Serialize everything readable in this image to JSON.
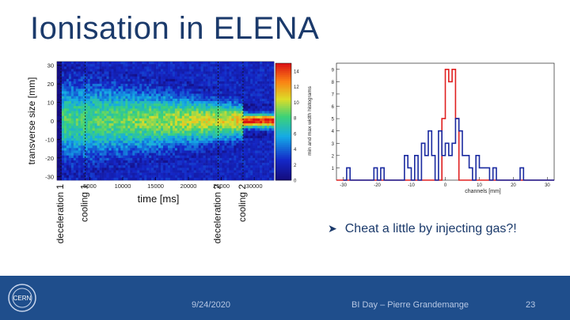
{
  "slide": {
    "title": "Ionisation in ELENA",
    "bullet": "Cheat a little by injecting gas?!",
    "bullet_icon": "arrow-bullet-icon"
  },
  "footer": {
    "date": "9/24/2020",
    "presenter": "BI Day – Pierre Grandemange",
    "page": "23",
    "logo_text": "CERN",
    "logo_icon": "cern-logo-icon",
    "background": "#1f4e8c"
  },
  "chart_data": [
    {
      "type": "heatmap",
      "ylabel": "transverse size [mm]",
      "xlabel": "time  [ms]",
      "x_ticks": [
        "5000",
        "10000",
        "15000",
        "20000",
        "25000",
        "30000"
      ],
      "y_ticks": [
        "30",
        "20",
        "10",
        "0",
        "-10",
        "-20",
        "-30"
      ],
      "xlim": [
        0,
        33000
      ],
      "ylim": [
        -32,
        32
      ],
      "colorbar": {
        "label": "min and max width histograms",
        "ticks": [
          "14",
          "12",
          "10",
          "8",
          "6",
          "4",
          "2",
          "0"
        ],
        "range": [
          0,
          15
        ]
      },
      "markers": [
        {
          "label": "deceleration 1",
          "x": 600
        },
        {
          "label": "cooling 1",
          "x": 4300
        },
        {
          "label": "deceleration 2",
          "x": 24500
        },
        {
          "label": "cooling 2",
          "x": 28300
        }
      ]
    },
    {
      "type": "line",
      "xlabel": "channels [mm]",
      "x_ticks": [
        "-30",
        "-20",
        "-10",
        "0",
        "10",
        "20",
        "30"
      ],
      "y_ticks": [
        "9",
        "8",
        "7",
        "6",
        "5",
        "4",
        "3",
        "2",
        "1"
      ],
      "xlim": [
        -32,
        32
      ],
      "ylim": [
        0,
        9.5
      ],
      "series": [
        {
          "color": "#e02020",
          "x": [
            -32,
            -2,
            -1,
            0,
            1,
            2,
            3,
            4,
            32
          ],
          "values": [
            0,
            0,
            5,
            9,
            8,
            9,
            5,
            0,
            0
          ]
        },
        {
          "color": "#1a2aa0",
          "x": [
            -30,
            -29,
            -28,
            -22,
            -21,
            -20,
            -19,
            -18,
            -17,
            -16,
            -15,
            -14,
            -13,
            -12,
            -11,
            -10,
            -9,
            -8,
            -7,
            -6,
            -5,
            -4,
            -3,
            -2,
            -1,
            0,
            1,
            2,
            3,
            4,
            5,
            6,
            7,
            8,
            9,
            10,
            11,
            12,
            13,
            14,
            15,
            16,
            17,
            18,
            19,
            20,
            21,
            22,
            23,
            24,
            25,
            26,
            27,
            28,
            29,
            30,
            31,
            32
          ],
          "values": [
            0,
            1,
            0,
            0,
            1,
            0,
            1,
            0,
            0,
            0,
            0,
            0,
            0,
            2,
            1,
            0,
            2,
            0,
            3,
            2,
            4,
            2,
            0,
            4,
            2,
            3,
            2,
            3,
            5,
            4,
            2,
            2,
            1,
            0,
            2,
            1,
            1,
            1,
            0,
            1,
            0,
            0,
            0,
            0,
            0,
            0,
            0,
            1,
            0,
            0,
            0,
            0,
            0,
            0,
            0,
            0,
            0,
            0
          ]
        }
      ]
    }
  ]
}
